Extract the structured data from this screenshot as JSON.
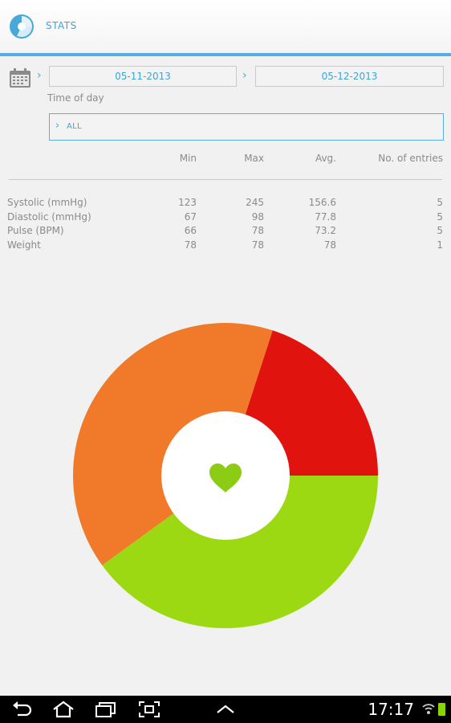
{
  "app": {
    "title": "STATS",
    "logo_icon": "stats-app-icon"
  },
  "filters": {
    "calendar_icon": "calendar-icon",
    "date_from": "05-11-2013",
    "date_to": "05-12-2013",
    "time_of_day_label": "Time of day",
    "time_of_day_value": "ALL"
  },
  "table": {
    "headers": [
      "Min",
      "Max",
      "Avg.",
      "No. of entries"
    ],
    "rows": [
      {
        "label": "Systolic (mmHg)",
        "min": "123",
        "max": "245",
        "avg": "156.6",
        "entries": "5"
      },
      {
        "label": "Diastolic (mmHg)",
        "min": "67",
        "max": "98",
        "avg": "77.8",
        "entries": "5"
      },
      {
        "label": "Pulse (BPM)",
        "min": "66",
        "max": "78",
        "avg": "73.2",
        "entries": "5"
      },
      {
        "label": "Weight",
        "min": "78",
        "max": "78",
        "avg": "78",
        "entries": "1"
      }
    ]
  },
  "chart_data": {
    "type": "pie",
    "donut": true,
    "center_icon": "heart-icon",
    "slices": [
      {
        "color": "#e0130f",
        "fraction": 0.2
      },
      {
        "color": "#9dd912",
        "fraction": 0.4
      },
      {
        "color": "#f07a2a",
        "fraction": 0.4
      }
    ]
  },
  "system_bar": {
    "clock": "17:17",
    "buttons": [
      "back-icon",
      "home-icon",
      "recent-apps-icon",
      "screenshot-icon",
      "menu-up-icon"
    ]
  },
  "colors": {
    "accent": "#58aee0",
    "text_accent": "#3aa6d8",
    "heart": "#8ccc14"
  }
}
